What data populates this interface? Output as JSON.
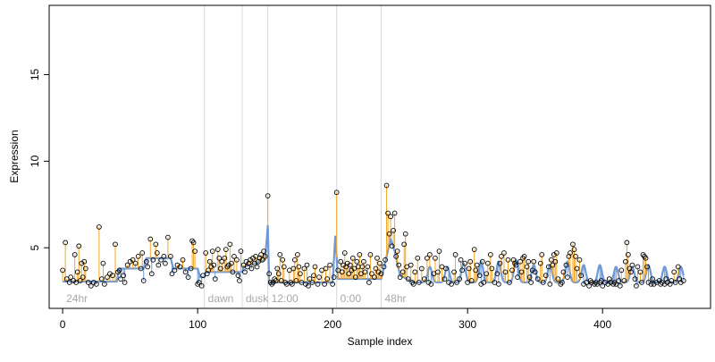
{
  "chart_data": {
    "type": "scatter",
    "xlabel": "Sample index",
    "ylabel": "Expression",
    "xlim": [
      -10,
      480
    ],
    "ylim": [
      1.5,
      19
    ],
    "xticks": [
      0,
      100,
      200,
      300,
      400
    ],
    "yticks": [
      5,
      10,
      15
    ],
    "grid": false,
    "colors": {
      "fitted_line": "#6f9ad6",
      "above_fit_segment": "#f5a623",
      "below_fit_segment": "#6f9ad6",
      "separator": "#d9d9d9",
      "separator_label": "#a8a8a8"
    },
    "separators": [
      {
        "x": 105,
        "label": "dawn"
      },
      {
        "x": 133,
        "label": "dusk"
      },
      {
        "x": 152,
        "label": "12:00"
      },
      {
        "x": 203,
        "label": "0:00"
      },
      {
        "x": 236,
        "label": "48hr"
      }
    ],
    "start_label": "24hr",
    "fitted_baseline": [
      [
        0,
        3.05
      ],
      [
        40,
        3.05
      ],
      [
        42,
        3.8
      ],
      [
        60,
        3.8
      ],
      [
        62,
        4.4
      ],
      [
        80,
        4.4
      ],
      [
        82,
        3.8
      ],
      [
        100,
        3.8
      ],
      [
        102,
        3.3
      ],
      [
        105,
        3.3
      ],
      [
        106,
        3.6
      ],
      [
        133,
        3.6
      ],
      [
        134,
        3.9
      ],
      [
        150,
        4.3
      ],
      [
        152,
        6.3
      ],
      [
        153,
        3.0
      ],
      [
        200,
        3.0
      ],
      [
        202,
        5.7
      ],
      [
        204,
        3.2
      ],
      [
        236,
        3.2
      ],
      [
        243,
        5.5
      ],
      [
        246,
        4.8
      ],
      [
        250,
        3.4
      ],
      [
        260,
        3.0
      ],
      [
        300,
        3.0
      ],
      [
        380,
        3.0
      ],
      [
        400,
        3.0
      ],
      [
        460,
        3.0
      ]
    ],
    "fitted_bumps": [
      [
        272,
        3.9
      ],
      [
        285,
        3.9
      ],
      [
        297,
        4.1
      ],
      [
        310,
        4.2
      ],
      [
        323,
        4.2
      ],
      [
        336,
        4.3
      ],
      [
        349,
        4.0
      ],
      [
        361,
        4.0
      ],
      [
        374,
        4.2
      ],
      [
        386,
        4.0
      ],
      [
        398,
        4.0
      ],
      [
        410,
        3.9
      ],
      [
        422,
        3.9
      ],
      [
        434,
        4.0
      ],
      [
        446,
        3.9
      ],
      [
        458,
        3.9
      ]
    ],
    "points": [
      [
        0,
        3.7
      ],
      [
        2,
        5.3
      ],
      [
        3,
        3.2
      ],
      [
        5,
        3.0
      ],
      [
        6,
        3.3
      ],
      [
        8,
        3.1
      ],
      [
        9,
        4.6
      ],
      [
        10,
        3.0
      ],
      [
        11,
        3.6
      ],
      [
        12,
        5.1
      ],
      [
        13,
        3.1
      ],
      [
        14,
        4.1
      ],
      [
        15,
        3.3
      ],
      [
        16,
        4.2
      ],
      [
        17,
        3.8
      ],
      [
        19,
        3.0
      ],
      [
        21,
        2.8
      ],
      [
        23,
        3.0
      ],
      [
        25,
        2.9
      ],
      [
        27,
        6.2
      ],
      [
        29,
        3.2
      ],
      [
        30,
        4.1
      ],
      [
        31,
        2.9
      ],
      [
        33,
        3.3
      ],
      [
        35,
        3.5
      ],
      [
        37,
        3.4
      ],
      [
        39,
        5.2
      ],
      [
        41,
        3.6
      ],
      [
        42,
        3.7
      ],
      [
        43,
        3.2
      ],
      [
        45,
        3.4
      ],
      [
        46,
        3.0
      ],
      [
        48,
        4.0
      ],
      [
        50,
        4.2
      ],
      [
        52,
        4.3
      ],
      [
        54,
        4.1
      ],
      [
        56,
        4.5
      ],
      [
        58,
        3.8
      ],
      [
        59,
        4.7
      ],
      [
        60,
        3.1
      ],
      [
        62,
        4.2
      ],
      [
        63,
        3.9
      ],
      [
        65,
        5.5
      ],
      [
        66,
        3.5
      ],
      [
        67,
        4.3
      ],
      [
        69,
        5.2
      ],
      [
        70,
        4.7
      ],
      [
        71,
        4.0
      ],
      [
        73,
        4.3
      ],
      [
        75,
        4.5
      ],
      [
        76,
        4.1
      ],
      [
        78,
        5.6
      ],
      [
        80,
        4.5
      ],
      [
        81,
        3.5
      ],
      [
        83,
        3.7
      ],
      [
        85,
        4.0
      ],
      [
        87,
        3.9
      ],
      [
        89,
        4.3
      ],
      [
        91,
        3.6
      ],
      [
        93,
        3.3
      ],
      [
        95,
        3.8
      ],
      [
        96,
        5.4
      ],
      [
        97,
        5.3
      ],
      [
        98,
        4.8
      ],
      [
        100,
        2.9
      ],
      [
        101,
        3.0
      ],
      [
        103,
        2.8
      ],
      [
        104,
        3.4
      ],
      [
        106,
        4.7
      ],
      [
        107,
        3.5
      ],
      [
        108,
        3.7
      ],
      [
        109,
        4.2
      ],
      [
        110,
        3.9
      ],
      [
        111,
        4.8
      ],
      [
        112,
        4.0
      ],
      [
        113,
        3.2
      ],
      [
        115,
        4.9
      ],
      [
        116,
        4.4
      ],
      [
        117,
        3.8
      ],
      [
        118,
        4.2
      ],
      [
        120,
        4.4
      ],
      [
        121,
        4.9
      ],
      [
        122,
        3.9
      ],
      [
        123,
        4.0
      ],
      [
        124,
        5.2
      ],
      [
        125,
        4.1
      ],
      [
        126,
        3.6
      ],
      [
        127,
        4.5
      ],
      [
        129,
        4.3
      ],
      [
        130,
        3.4
      ],
      [
        131,
        3.1
      ],
      [
        132,
        4.8
      ],
      [
        134,
        4.0
      ],
      [
        135,
        3.6
      ],
      [
        136,
        4.2
      ],
      [
        137,
        3.9
      ],
      [
        138,
        4.1
      ],
      [
        139,
        4.3
      ],
      [
        140,
        3.8
      ],
      [
        141,
        4.4
      ],
      [
        142,
        4.1
      ],
      [
        143,
        4.5
      ],
      [
        144,
        3.9
      ],
      [
        145,
        4.2
      ],
      [
        146,
        4.4
      ],
      [
        147,
        4.6
      ],
      [
        148,
        4.3
      ],
      [
        149,
        4.8
      ],
      [
        150,
        4.5
      ],
      [
        152,
        8.0
      ],
      [
        153,
        3.5
      ],
      [
        154,
        3.0
      ],
      [
        155,
        2.9
      ],
      [
        156,
        3.0
      ],
      [
        157,
        3.2
      ],
      [
        158,
        3.1
      ],
      [
        159,
        3.8
      ],
      [
        160,
        3.5
      ],
      [
        161,
        4.6
      ],
      [
        162,
        3.1
      ],
      [
        163,
        4.3
      ],
      [
        164,
        3.9
      ],
      [
        165,
        3.0
      ],
      [
        166,
        2.9
      ],
      [
        168,
        3.7
      ],
      [
        169,
        3.0
      ],
      [
        170,
        2.9
      ],
      [
        171,
        3.8
      ],
      [
        172,
        4.3
      ],
      [
        173,
        3.1
      ],
      [
        174,
        4.6
      ],
      [
        175,
        3.9
      ],
      [
        176,
        3.5
      ],
      [
        177,
        3.0
      ],
      [
        179,
        3.8
      ],
      [
        180,
        2.9
      ],
      [
        181,
        4.0
      ],
      [
        182,
        2.8
      ],
      [
        183,
        3.2
      ],
      [
        185,
        3.0
      ],
      [
        186,
        3.4
      ],
      [
        187,
        3.9
      ],
      [
        189,
        2.9
      ],
      [
        190,
        3.3
      ],
      [
        192,
        3.7
      ],
      [
        194,
        2.9
      ],
      [
        195,
        3.8
      ],
      [
        196,
        3.2
      ],
      [
        198,
        4.0
      ],
      [
        200,
        2.9
      ],
      [
        201,
        3.3
      ],
      [
        203,
        8.2
      ],
      [
        204,
        3.7
      ],
      [
        206,
        4.2
      ],
      [
        207,
        3.6
      ],
      [
        208,
        4.0
      ],
      [
        209,
        4.7
      ],
      [
        210,
        3.9
      ],
      [
        211,
        4.1
      ],
      [
        212,
        3.5
      ],
      [
        213,
        4.0
      ],
      [
        214,
        3.7
      ],
      [
        215,
        4.4
      ],
      [
        216,
        3.8
      ],
      [
        217,
        3.3
      ],
      [
        218,
        4.2
      ],
      [
        219,
        3.9
      ],
      [
        220,
        4.6
      ],
      [
        221,
        3.5
      ],
      [
        222,
        3.9
      ],
      [
        223,
        4.2
      ],
      [
        224,
        3.6
      ],
      [
        226,
        3.9
      ],
      [
        227,
        3.0
      ],
      [
        228,
        4.6
      ],
      [
        229,
        3.5
      ],
      [
        231,
        3.3
      ],
      [
        232,
        3.8
      ],
      [
        233,
        4.4
      ],
      [
        234,
        3.6
      ],
      [
        235,
        4.1
      ],
      [
        236,
        3.5
      ],
      [
        238,
        3.9
      ],
      [
        239,
        4.3
      ],
      [
        240,
        8.6
      ],
      [
        241,
        7.0
      ],
      [
        242,
        5.8
      ],
      [
        243,
        6.8
      ],
      [
        244,
        5.1
      ],
      [
        245,
        6.0
      ],
      [
        246,
        7.0
      ],
      [
        247,
        4.5
      ],
      [
        248,
        4.8
      ],
      [
        249,
        4.0
      ],
      [
        250,
        3.3
      ],
      [
        252,
        3.6
      ],
      [
        253,
        5.2
      ],
      [
        254,
        5.8
      ],
      [
        255,
        3.9
      ],
      [
        256,
        3.2
      ],
      [
        258,
        4.0
      ],
      [
        259,
        3.0
      ],
      [
        260,
        2.9
      ],
      [
        261,
        3.6
      ],
      [
        263,
        4.4
      ],
      [
        264,
        3.0
      ],
      [
        266,
        3.8
      ],
      [
        268,
        3.2
      ],
      [
        270,
        4.4
      ],
      [
        271,
        3.0
      ],
      [
        272,
        4.6
      ],
      [
        273,
        2.9
      ],
      [
        275,
        3.5
      ],
      [
        276,
        4.4
      ],
      [
        278,
        3.6
      ],
      [
        279,
        4.8
      ],
      [
        281,
        3.9
      ],
      [
        283,
        3.2
      ],
      [
        284,
        3.8
      ],
      [
        286,
        3.0
      ],
      [
        288,
        2.9
      ],
      [
        290,
        3.6
      ],
      [
        291,
        4.6
      ],
      [
        292,
        3.0
      ],
      [
        294,
        3.2
      ],
      [
        295,
        4.3
      ],
      [
        296,
        3.7
      ],
      [
        298,
        4.1
      ],
      [
        300,
        3.0
      ],
      [
        301,
        3.8
      ],
      [
        302,
        4.2
      ],
      [
        303,
        3.1
      ],
      [
        305,
        4.9
      ],
      [
        306,
        3.7
      ],
      [
        307,
        4.0
      ],
      [
        309,
        3.4
      ],
      [
        310,
        2.9
      ],
      [
        311,
        4.2
      ],
      [
        312,
        3.0
      ],
      [
        314,
        3.5
      ],
      [
        315,
        4.1
      ],
      [
        317,
        4.6
      ],
      [
        318,
        3.8
      ],
      [
        320,
        3.0
      ],
      [
        322,
        3.5
      ],
      [
        323,
        2.9
      ],
      [
        324,
        4.1
      ],
      [
        325,
        4.5
      ],
      [
        327,
        4.7
      ],
      [
        328,
        3.6
      ],
      [
        330,
        4.3
      ],
      [
        331,
        3.0
      ],
      [
        333,
        3.7
      ],
      [
        334,
        4.3
      ],
      [
        335,
        4.1
      ],
      [
        336,
        4.0
      ],
      [
        337,
        3.3
      ],
      [
        339,
        4.2
      ],
      [
        340,
        3.6
      ],
      [
        341,
        4.4
      ],
      [
        342,
        4.5
      ],
      [
        344,
        3.9
      ],
      [
        345,
        4.2
      ],
      [
        346,
        3.3
      ],
      [
        347,
        3.0
      ],
      [
        348,
        3.7
      ],
      [
        349,
        4.2
      ],
      [
        350,
        3.6
      ],
      [
        352,
        3.2
      ],
      [
        354,
        4.1
      ],
      [
        355,
        4.6
      ],
      [
        356,
        3.0
      ],
      [
        358,
        3.4
      ],
      [
        360,
        3.9
      ],
      [
        361,
        2.9
      ],
      [
        362,
        4.3
      ],
      [
        363,
        4.0
      ],
      [
        364,
        4.6
      ],
      [
        365,
        4.2
      ],
      [
        366,
        4.7
      ],
      [
        367,
        3.2
      ],
      [
        369,
        2.9
      ],
      [
        370,
        3.0
      ],
      [
        371,
        3.6
      ],
      [
        373,
        4.0
      ],
      [
        374,
        3.3
      ],
      [
        375,
        4.5
      ],
      [
        376,
        4.7
      ],
      [
        378,
        5.2
      ],
      [
        379,
        4.9
      ],
      [
        380,
        4.5
      ],
      [
        381,
        3.8
      ],
      [
        383,
        4.3
      ],
      [
        384,
        3.4
      ],
      [
        386,
        2.9
      ],
      [
        388,
        3.0
      ],
      [
        390,
        2.8
      ],
      [
        391,
        3.1
      ],
      [
        392,
        3.0
      ],
      [
        394,
        2.9
      ],
      [
        395,
        3.0
      ],
      [
        396,
        2.9
      ],
      [
        398,
        3.0
      ],
      [
        399,
        3.1
      ],
      [
        400,
        2.8
      ],
      [
        402,
        3.0
      ],
      [
        404,
        2.9
      ],
      [
        405,
        3.2
      ],
      [
        406,
        3.0
      ],
      [
        408,
        2.9
      ],
      [
        409,
        3.0
      ],
      [
        410,
        2.9
      ],
      [
        412,
        3.1
      ],
      [
        413,
        2.8
      ],
      [
        414,
        3.7
      ],
      [
        416,
        3.1
      ],
      [
        417,
        4.2
      ],
      [
        418,
        5.3
      ],
      [
        419,
        4.6
      ],
      [
        420,
        3.8
      ],
      [
        421,
        3.6
      ],
      [
        422,
        4.0
      ],
      [
        424,
        3.2
      ],
      [
        425,
        2.8
      ],
      [
        426,
        3.9
      ],
      [
        428,
        3.6
      ],
      [
        429,
        3.0
      ],
      [
        430,
        4.6
      ],
      [
        431,
        4.5
      ],
      [
        432,
        4.4
      ],
      [
        433,
        3.9
      ],
      [
        434,
        3.0
      ],
      [
        436,
        2.9
      ],
      [
        437,
        3.2
      ],
      [
        438,
        2.9
      ],
      [
        440,
        3.0
      ],
      [
        442,
        3.1
      ],
      [
        443,
        2.9
      ],
      [
        444,
        3.0
      ],
      [
        446,
        2.9
      ],
      [
        447,
        3.2
      ],
      [
        448,
        3.0
      ],
      [
        450,
        2.9
      ],
      [
        451,
        3.1
      ],
      [
        453,
        3.6
      ],
      [
        454,
        3.0
      ],
      [
        456,
        3.9
      ],
      [
        457,
        3.2
      ],
      [
        458,
        3.0
      ],
      [
        460,
        3.1
      ]
    ]
  }
}
